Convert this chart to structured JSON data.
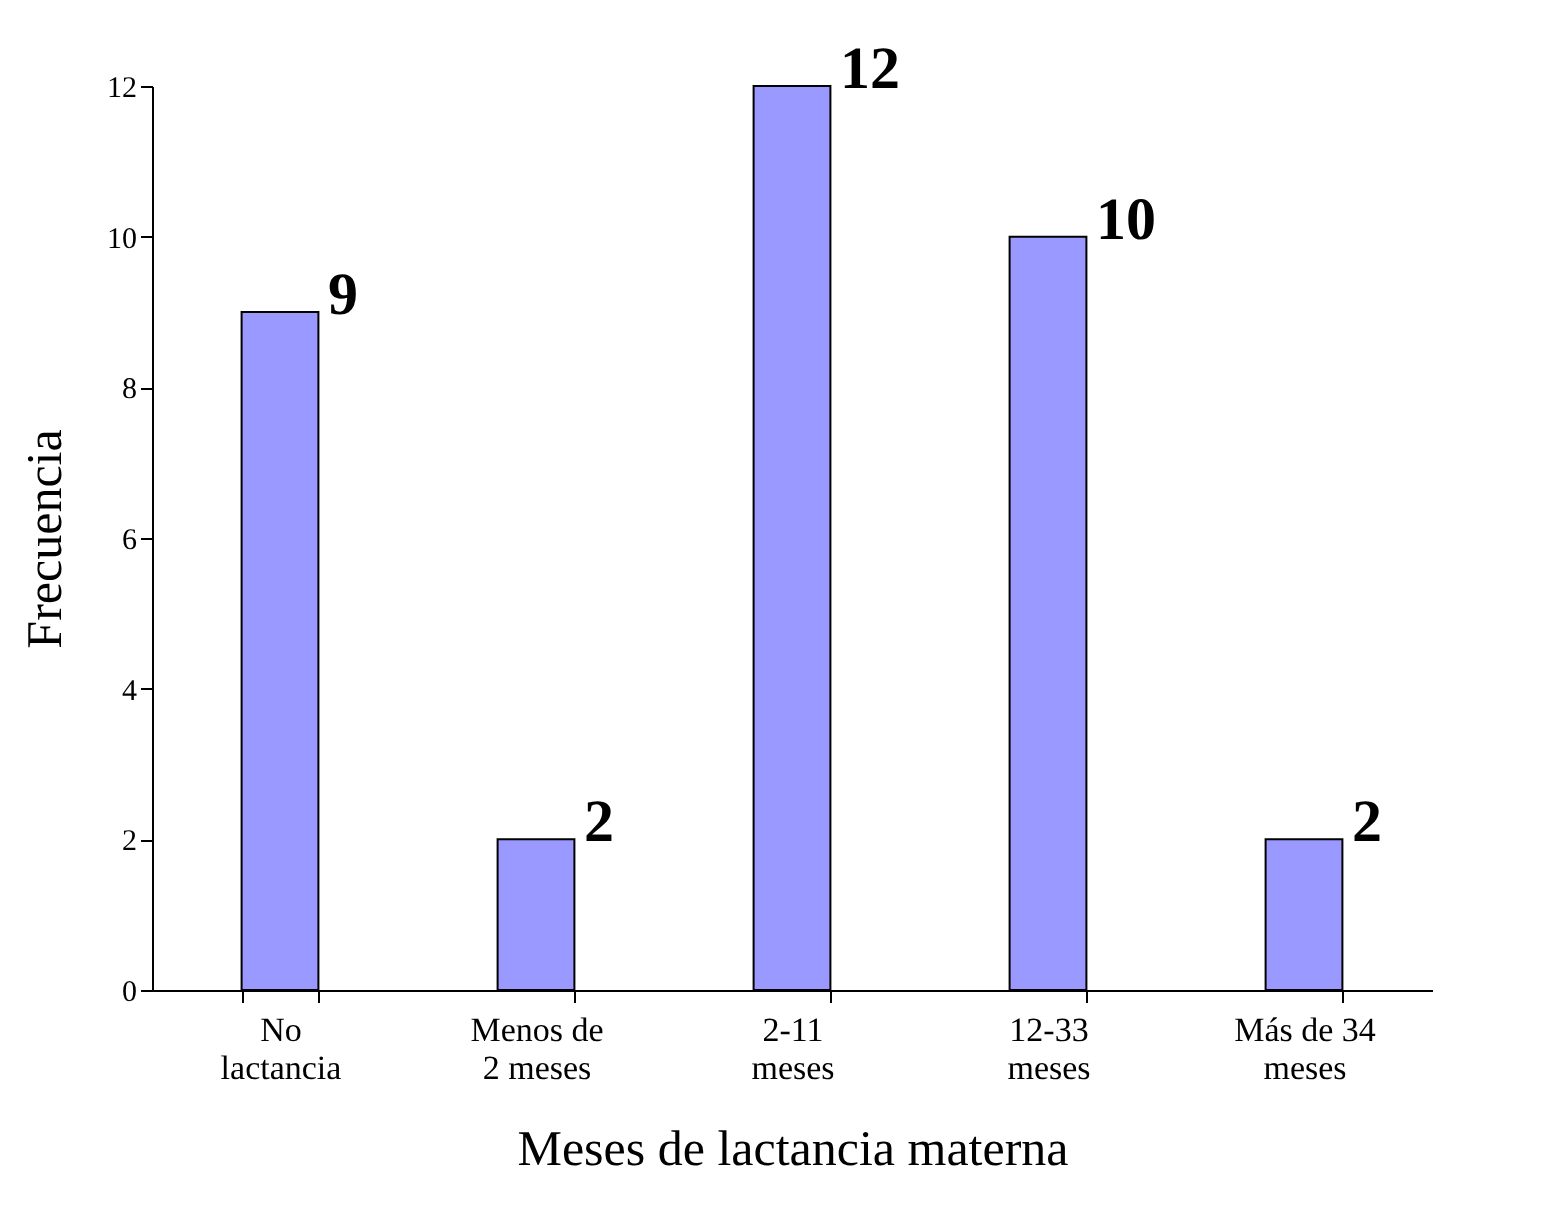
{
  "chart_data": {
    "type": "bar",
    "categories": [
      "No\nlactancia",
      "Menos de\n2 meses",
      "2-11\nmeses",
      "12-33\nmeses",
      "Más de 34\nmeses"
    ],
    "values": [
      9,
      2,
      12,
      10,
      2
    ],
    "color": "#9999ff",
    "xlabel": "Meses de lactancia materna",
    "ylabel": "Frecuencia",
    "ylim": [
      0,
      12
    ],
    "yticks": [
      0,
      2,
      4,
      6,
      8,
      10,
      12
    ],
    "data_labels": true
  }
}
